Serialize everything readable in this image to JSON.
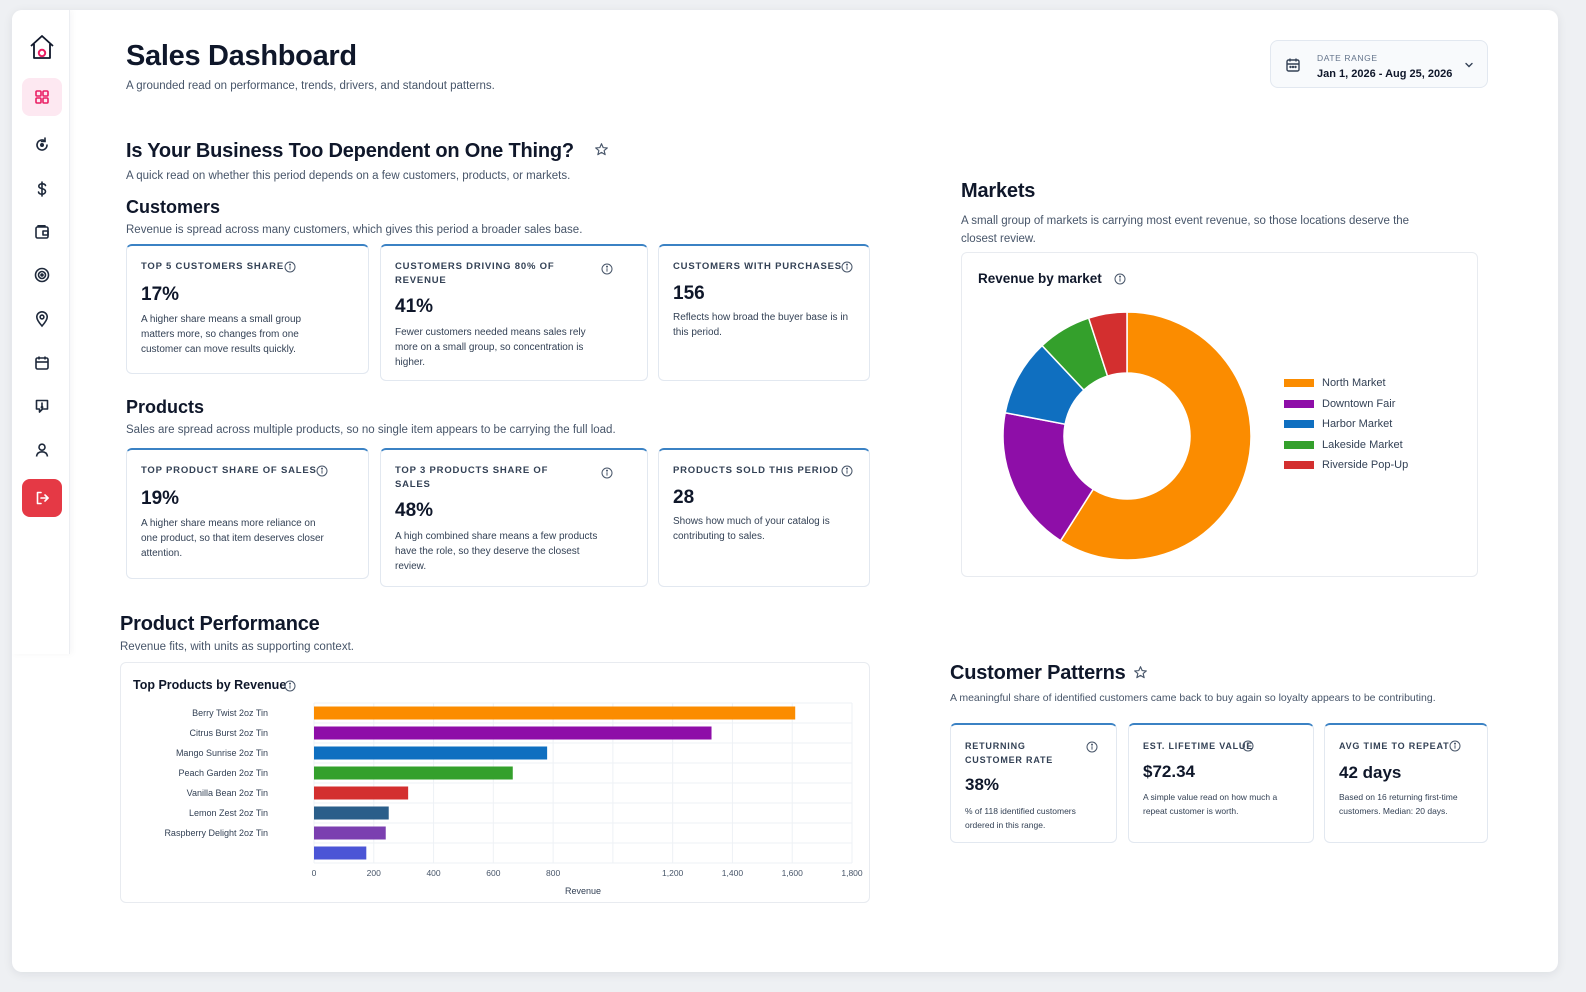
{
  "header": {
    "title": "Sales Dashboard",
    "subtitle": "A grounded read on performance, trends, drivers, and standout patterns."
  },
  "date_range": {
    "label": "DATE RANGE",
    "value": "Jan 1, 2026 - Aug 25, 2026"
  },
  "sidebar": {
    "items": [
      {
        "name": "home",
        "icon": "house-icon"
      },
      {
        "name": "dashboard",
        "icon": "grid-icon",
        "active": true
      },
      {
        "name": "refresh",
        "icon": "refresh-icon"
      },
      {
        "name": "revenue",
        "icon": "dollar-icon"
      },
      {
        "name": "wallet",
        "icon": "wallet-icon"
      },
      {
        "name": "goals",
        "icon": "target-icon"
      },
      {
        "name": "locations",
        "icon": "location-icon"
      },
      {
        "name": "calendar",
        "icon": "calendar-icon"
      },
      {
        "name": "alerts",
        "icon": "alert-icon"
      },
      {
        "name": "profile",
        "icon": "user-icon"
      },
      {
        "name": "logout",
        "icon": "logout-icon"
      }
    ]
  },
  "dependency": {
    "title": "Is Your Business Too Dependent on One Thing?",
    "subtitle": "A quick read on whether this period depends on a few customers, products, or markets.",
    "customers": {
      "title": "Customers",
      "subtitle": "Revenue is spread across many customers, which gives this period a broader sales base.",
      "cards": [
        {
          "label": "TOP 5 CUSTOMERS SHARE",
          "value": "17%",
          "desc": "A higher share means a small group matters more, so changes from one customer can move results quickly."
        },
        {
          "label": "CUSTOMERS DRIVING 80% OF REVENUE",
          "value": "41%",
          "desc": "Fewer customers needed means sales rely more on a small group, so concentration is higher."
        },
        {
          "label": "CUSTOMERS WITH PURCHASES",
          "value": "156",
          "desc": "Reflects how broad the buyer base is in this period."
        }
      ]
    },
    "products": {
      "title": "Products",
      "subtitle": "Sales are spread across multiple products, so no single item appears to be carrying the full load.",
      "cards": [
        {
          "label": "TOP PRODUCT SHARE OF SALES",
          "value": "19%",
          "desc": "A higher share means more reliance on one product, so that item deserves closer attention."
        },
        {
          "label": "TOP 3 PRODUCTS SHARE OF SALES",
          "value": "48%",
          "desc": "A high combined share means a few products have the role, so they deserve the closest review."
        },
        {
          "label": "PRODUCTS SOLD THIS PERIOD",
          "value": "28",
          "desc": "Shows how much of your catalog is contributing to sales."
        }
      ]
    }
  },
  "markets": {
    "title": "Markets",
    "subtitle": "A small group of markets is carrying most event revenue, so those locations deserve the closest review.",
    "panel_title": "Revenue by market"
  },
  "product_performance": {
    "title": "Product Performance",
    "subtitle": "Revenue fits, with units as supporting context.",
    "panel_title": "Top Products by Revenue"
  },
  "customer_patterns": {
    "title": "Customer Patterns",
    "subtitle": "A meaningful share of identified customers came back to buy again so loyalty appears to be contributing.",
    "cards": [
      {
        "label": "RETURNING CUSTOMER RATE",
        "value": "38%",
        "desc": "% of 118 identified customers ordered in this range."
      },
      {
        "label": "EST. LIFETIME VALUE",
        "value": "$72.34",
        "desc": "A simple value read on how much a repeat customer is worth."
      },
      {
        "label": "AVG TIME TO REPEAT",
        "value": "42 days",
        "desc": "Based on 16 returning first-time customers. Median: 20 days."
      }
    ]
  },
  "chart_data": [
    {
      "type": "pie",
      "title": "Revenue by market",
      "categories": [
        "North Market",
        "Downtown Fair",
        "Harbor Market",
        "Lakeside Market",
        "Riverside Pop-Up"
      ],
      "values": [
        59,
        19,
        10,
        7,
        5
      ],
      "colors": [
        "#fb8c00",
        "#8e0ea8",
        "#0f6fc0",
        "#34a02c",
        "#d32f2f"
      ],
      "legend": "right",
      "donut": true
    },
    {
      "type": "bar",
      "orientation": "horizontal",
      "title": "Top Products by Revenue",
      "xlabel": "Revenue",
      "ylabel": "",
      "xlim": [
        0,
        1800
      ],
      "xticks": [
        0,
        200,
        400,
        600,
        800,
        1200,
        1400,
        1600,
        1800
      ],
      "xtick_labels": [
        "0",
        "200",
        "400",
        "600",
        "800",
        "1,200",
        "1,400",
        "1,600",
        "1,800"
      ],
      "categories": [
        "Berry Twist 2oz Tin",
        "Citrus Burst 2oz Tin",
        "Mango Sunrise 2oz Tin",
        "Peach Garden 2oz Tin",
        "Vanilla Bean 2oz Tin",
        "Lemon Zest 2oz Tin",
        "Raspberry Delight 2oz Tin",
        ""
      ],
      "values": [
        1610,
        1330,
        780,
        665,
        315,
        250,
        240,
        175
      ],
      "colors": [
        "#fb8c00",
        "#8e0ea8",
        "#0f6fc0",
        "#34a02c",
        "#d32f2f",
        "#2a5e8a",
        "#7b3fb0",
        "#4b55d6"
      ],
      "grid": true
    }
  ]
}
